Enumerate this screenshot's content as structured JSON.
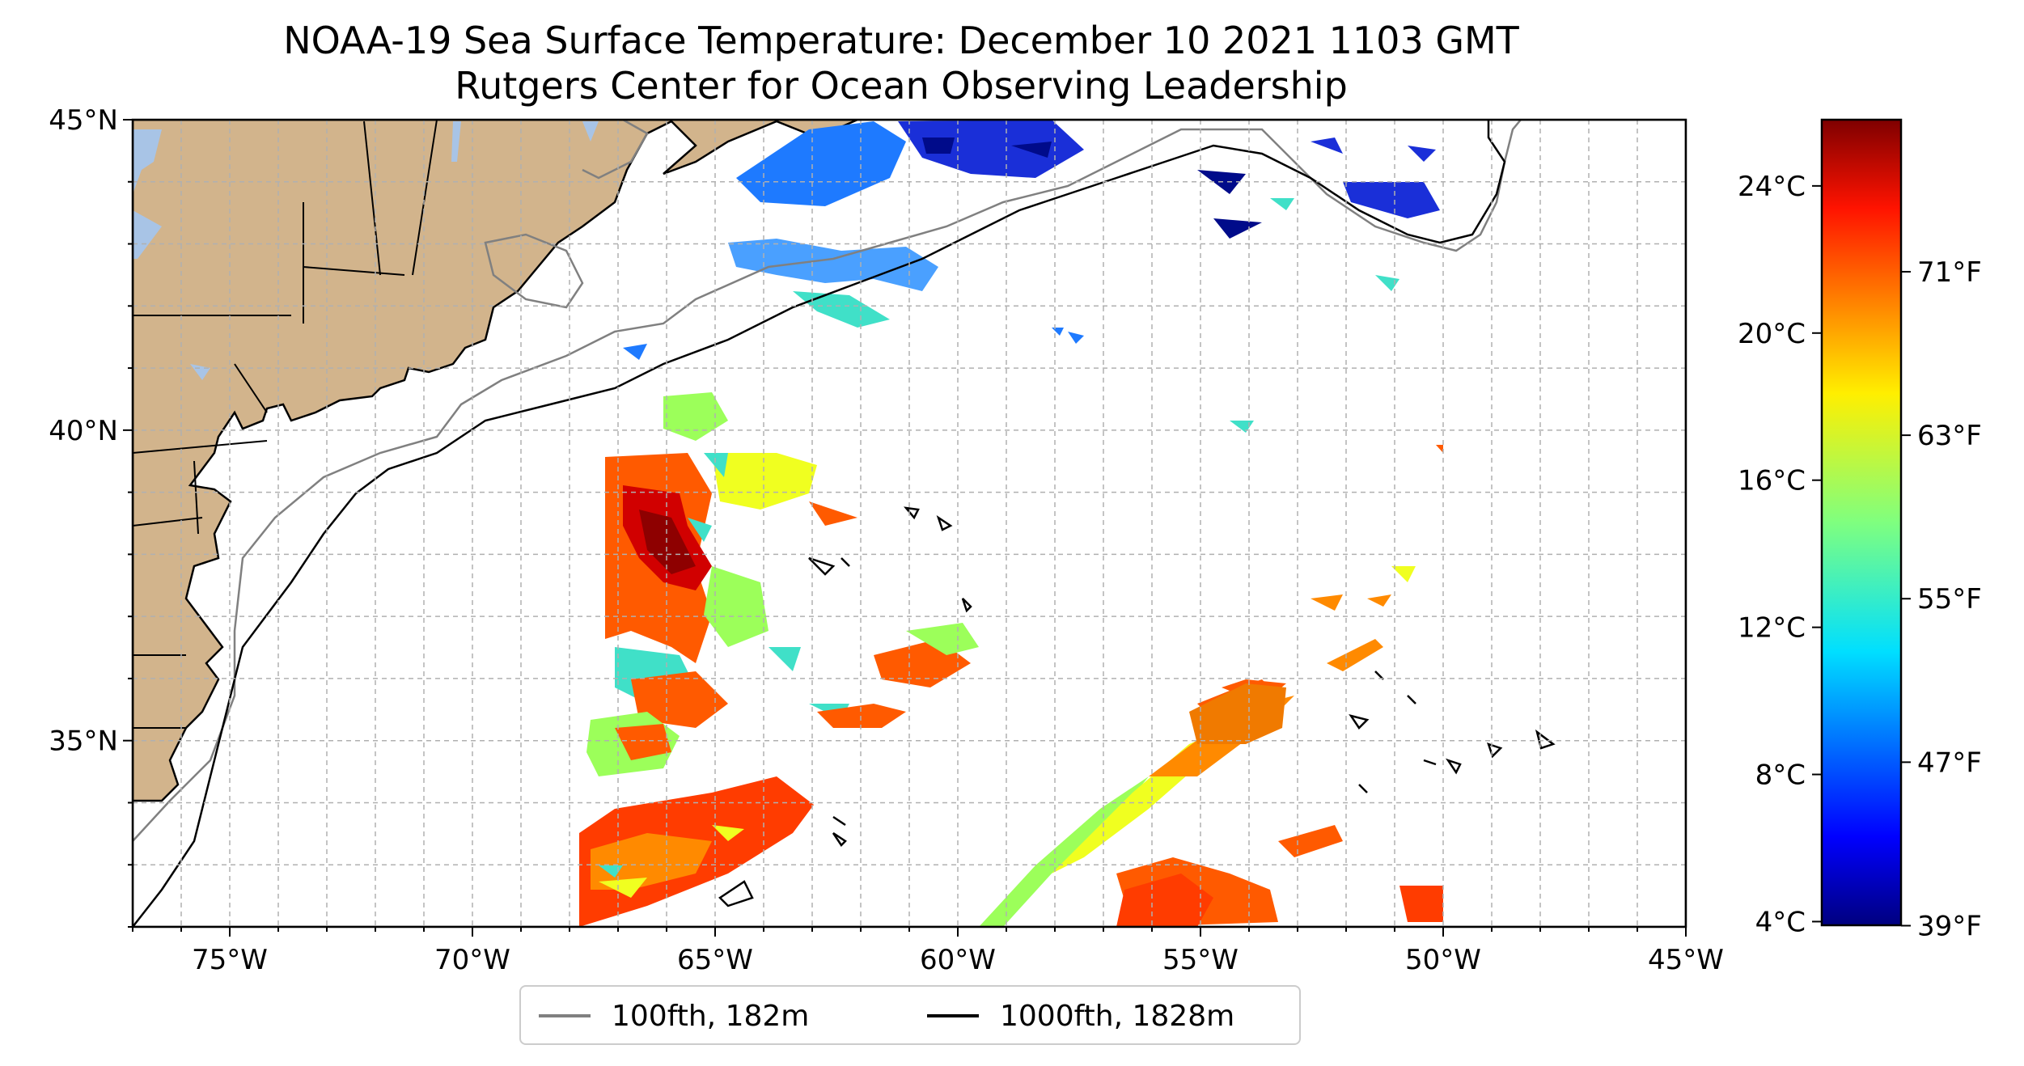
{
  "title": "NOAA-19 Sea Surface Temperature: December 10 2021 1103 GMT",
  "subtitle": "Rutgers Center for Ocean Observing Leadership",
  "map": {
    "lon_ticks": [
      "75°W",
      "70°W",
      "65°W",
      "60°W",
      "55°W",
      "50°W",
      "45°W"
    ],
    "lat_ticks": [
      "45°N",
      "40°N",
      "35°N"
    ],
    "extent": {
      "lon": [
        -77,
        -45
      ],
      "lat": [
        32,
        45
      ]
    },
    "gridlines": true,
    "land_color": "#D2B48C",
    "water_color": "#A8C4E6"
  },
  "colorbar": {
    "celsius_ticks": [
      "24°C",
      "20°C",
      "16°C",
      "12°C",
      "8°C",
      "4°C"
    ],
    "fahrenheit_ticks": [
      "71°F",
      "63°F",
      "55°F",
      "47°F",
      "39°F"
    ],
    "colormap": "jet"
  },
  "legend": {
    "items": [
      {
        "label": "100fth, 182m",
        "color": "#808080"
      },
      {
        "label": "1000fth, 1828m",
        "color": "#000000"
      }
    ]
  }
}
